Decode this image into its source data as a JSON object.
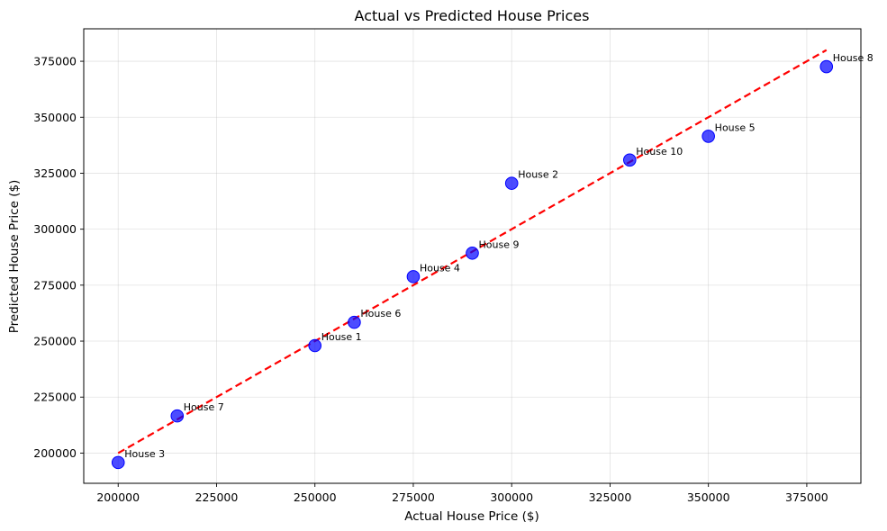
{
  "chart_data": {
    "type": "scatter",
    "title": "Actual vs Predicted House Prices",
    "xlabel": "Actual House Price ($)",
    "ylabel": "Predicted House Price ($)",
    "xlim": [
      191250,
      388750
    ],
    "ylim": [
      186500,
      389500
    ],
    "xticks": [
      200000,
      225000,
      250000,
      275000,
      300000,
      325000,
      350000,
      375000
    ],
    "yticks": [
      200000,
      225000,
      250000,
      275000,
      300000,
      325000,
      350000,
      375000
    ],
    "grid": true,
    "points": [
      {
        "label": "House 1",
        "x": 250000,
        "y": 248000
      },
      {
        "label": "House 2",
        "x": 300000,
        "y": 320500
      },
      {
        "label": "House 3",
        "x": 200000,
        "y": 195800
      },
      {
        "label": "House 4",
        "x": 275000,
        "y": 278800
      },
      {
        "label": "House 5",
        "x": 350000,
        "y": 341500
      },
      {
        "label": "House 6",
        "x": 260000,
        "y": 258400
      },
      {
        "label": "House 7",
        "x": 215000,
        "y": 216600
      },
      {
        "label": "House 8",
        "x": 380000,
        "y": 372600
      },
      {
        "label": "House 9",
        "x": 290000,
        "y": 289300
      },
      {
        "label": "House 10",
        "x": 330000,
        "y": 330900
      }
    ],
    "reference_line": {
      "x": [
        200000,
        380000
      ],
      "y": [
        200000,
        380000
      ],
      "style": "dashed",
      "color": "#ff0000"
    },
    "marker_color": "#0000ff"
  }
}
